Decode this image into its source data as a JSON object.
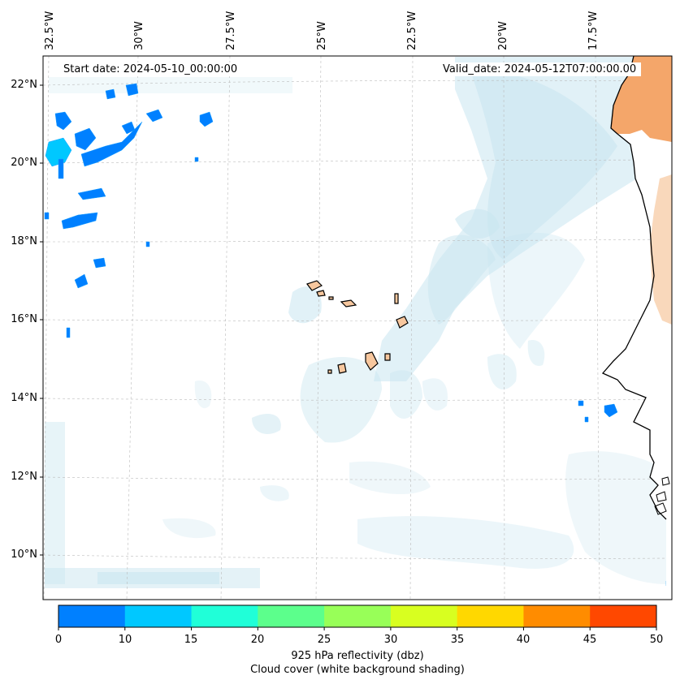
{
  "map": {
    "start_date_label": "Start date: 2024-05-10_00:00:00",
    "valid_date_label": "Valid_date: 2024-05-12T07:00:00.00",
    "longitude_labels": [
      "32.5°W",
      "30°W",
      "27.5°W",
      "25°W",
      "22.5°W",
      "20°W",
      "17.5°W"
    ],
    "latitude_labels": [
      "22°N",
      "20°N",
      "18°N",
      "16°N",
      "14°N",
      "12°N",
      "10°N"
    ],
    "extent": {
      "lon_min": -33.0,
      "lon_max": -16.0,
      "lat_min": 8.9,
      "lat_max": 22.7
    },
    "colors": {
      "coastline": "#000000",
      "land_fill": "#f7c79e",
      "cloud_cover": "#c9e6f0",
      "grid": "#bbbbbb"
    }
  },
  "colorbar": {
    "ticks": [
      "0",
      "10",
      "15",
      "20",
      "25",
      "30",
      "35",
      "40",
      "45",
      "50"
    ],
    "colors": [
      "#0080ff",
      "#00c8ff",
      "#20ffd8",
      "#5cff8c",
      "#98ff58",
      "#d8ff20",
      "#ffd800",
      "#ff8c00",
      "#ff4800"
    ],
    "label_line1": "925 hPa reflectivity (dbz)",
    "label_line2": "Cloud cover (white background shading)"
  }
}
